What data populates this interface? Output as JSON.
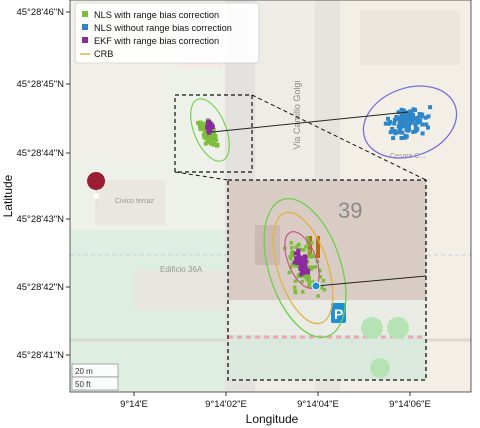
{
  "chart_data": {
    "type": "scatter",
    "title": "",
    "xlabel": "Longitude",
    "ylabel": "Latitude",
    "x_ticks": [
      "9°14'E",
      "9°14'02\"E",
      "9°14'04\"E",
      "9°14'06\"E"
    ],
    "y_ticks": [
      "45°28'46\"N",
      "45°28'45\"N",
      "45°28'44\"N",
      "45°28'43\"N",
      "45°28'42\"N",
      "45°28'41\"N"
    ],
    "legend": {
      "placement": "top-left",
      "entries": [
        {
          "label": "NLS with range bias correction",
          "color": "#7cbd3a",
          "marker": "square"
        },
        {
          "label": "NLS without range bias correction",
          "color": "#2d86c7",
          "marker": "square"
        },
        {
          "label": "EKF with range bias correction",
          "color": "#8b2a9e",
          "marker": "square"
        },
        {
          "label": "CRB",
          "color": "#e0b444",
          "marker": "line"
        }
      ]
    },
    "scale_bar": {
      "metric": "20 m",
      "imperial": "50 ft"
    },
    "inset_label": "39",
    "map_labels": [
      {
        "text": "Via Camillo Golgi"
      },
      {
        "text": "Edificio 36A"
      },
      {
        "text": "Civico terraz"
      },
      {
        "text": "Cesare C..."
      }
    ],
    "clusters": [
      {
        "series": "NLS without range bias correction",
        "center": [
          "9°14'06\"E",
          "45°28'44.6\"N"
        ],
        "ellipse_color": "#7a6fd8"
      },
      {
        "series": "NLS with range bias correction",
        "center": [
          "9°14'01.5\"E",
          "45°28'44.3\"N"
        ],
        "ellipse_color": "#6fcf4a"
      },
      {
        "series": "EKF with range bias correction",
        "center": [
          "9°14'01.5\"E",
          "45°28'44.3\"N"
        ]
      }
    ],
    "grid": false,
    "background": "map tiles"
  }
}
